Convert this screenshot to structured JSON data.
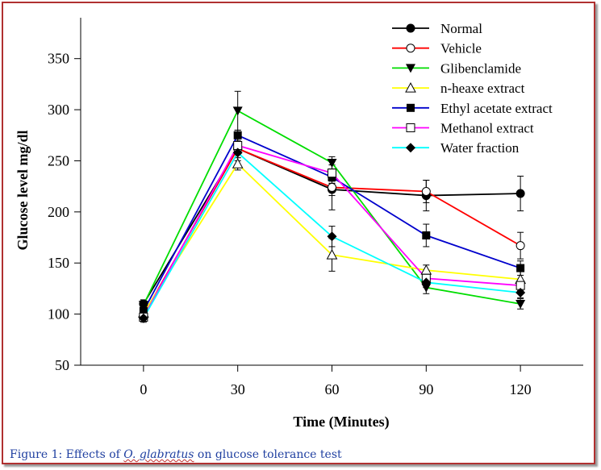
{
  "chart_data": {
    "type": "line",
    "x": [
      0,
      30,
      60,
      90,
      120
    ],
    "xlabel": "Time (Minutes)",
    "ylabel": "Glucose level mg/dl",
    "xlim": [
      -20,
      140
    ],
    "ylim": [
      50,
      390
    ],
    "yticks": [
      50,
      100,
      150,
      200,
      250,
      300,
      350
    ],
    "xticks": [
      0,
      30,
      60,
      90,
      120
    ],
    "legend_position": "top-right",
    "grid": false,
    "series": [
      {
        "name": "Normal",
        "color": "#000000",
        "marker": "filled-circle",
        "values": [
          110,
          262,
          222,
          216,
          218
        ],
        "errors": [
          4,
          6,
          6,
          15,
          17
        ]
      },
      {
        "name": "Vehicle",
        "color": "#ff0000",
        "marker": "open-circle",
        "values": [
          99,
          262,
          224,
          220,
          167
        ],
        "errors": [
          4,
          5,
          22,
          11,
          13
        ]
      },
      {
        "name": "Glibenclamide",
        "color": "#00dd00",
        "marker": "filled-triangle-down",
        "values": [
          109,
          299,
          248,
          126,
          110
        ],
        "errors": [
          4,
          19,
          6,
          6,
          5
        ]
      },
      {
        "name": "n-heaxe extract",
        "color": "#ffff00",
        "marker": "open-triangle-up",
        "values": [
          101,
          247,
          158,
          143,
          134
        ],
        "errors": [
          4,
          6,
          16,
          5,
          8
        ]
      },
      {
        "name": "Ethyl acetate extract",
        "color": "#0000cc",
        "marker": "filled-square",
        "values": [
          103,
          275,
          234,
          177,
          145
        ],
        "errors": [
          4,
          5,
          6,
          11,
          7
        ]
      },
      {
        "name": "Methanol extract",
        "color": "#ff00ff",
        "marker": "open-square",
        "values": [
          97,
          265,
          238,
          135,
          128
        ],
        "errors": [
          4,
          9,
          8,
          5,
          5
        ]
      },
      {
        "name": "Water fraction",
        "color": "#00ffff",
        "marker": "filled-diamond",
        "values": [
          96,
          258,
          176,
          131,
          121
        ],
        "errors": [
          4,
          8,
          10,
          5,
          5
        ]
      }
    ]
  },
  "caption": {
    "prefix": "Figure 1:  Effects of ",
    "species": "O. glabratus",
    "suffix": " on glucose tolerance test"
  }
}
